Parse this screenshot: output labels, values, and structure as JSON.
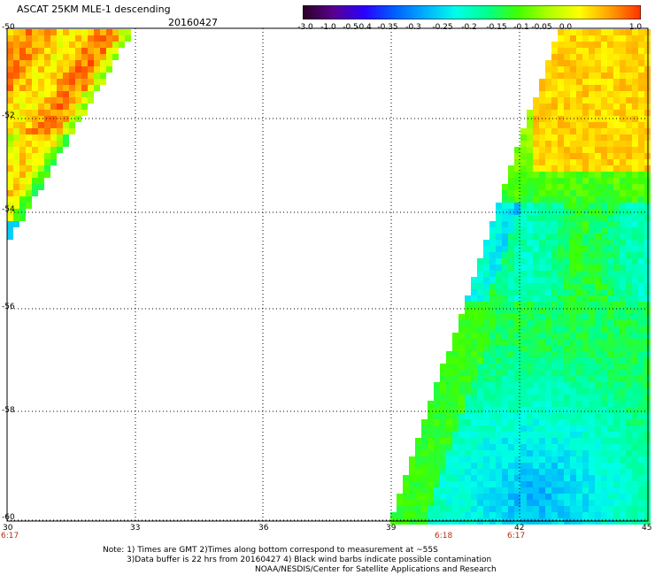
{
  "header": {
    "title": "ASCAT 25KM MLE-1 descending",
    "date": "20160427"
  },
  "colorbar": {
    "labels": [
      "-3.0",
      "-1.0",
      "-0.5",
      "-0.4",
      "-0.35",
      "-0.3",
      "-0.25",
      "-0.2",
      "-0.15",
      "-0.1",
      "-0.05",
      "0.0",
      "1.0"
    ],
    "colors": [
      "#2a0022",
      "#5a0090",
      "#2a00ff",
      "#0060ff",
      "#00b0ff",
      "#00ffe8",
      "#00ff90",
      "#40ff00",
      "#b0ff00",
      "#ffff00",
      "#ffa000",
      "#ff3000"
    ]
  },
  "map": {
    "lat_labels": [
      "-50",
      "-52",
      "-54",
      "-56",
      "-58",
      "-60"
    ],
    "lon_labels": [
      "30",
      "33",
      "36",
      "39",
      "42",
      "45"
    ],
    "times": [
      "6:17",
      "6:18",
      "6:17"
    ]
  },
  "notes": {
    "line1": "Note: 1) Times are GMT 2)Times along bottom correspond to measurement at ~55S",
    "line2": "3)Data buffer is 22 hrs from 20160427 4) Black wind barbs indicate possible contamination",
    "line3": "NOAA/NESDIS/Center for Satellite Applications and Research"
  }
}
